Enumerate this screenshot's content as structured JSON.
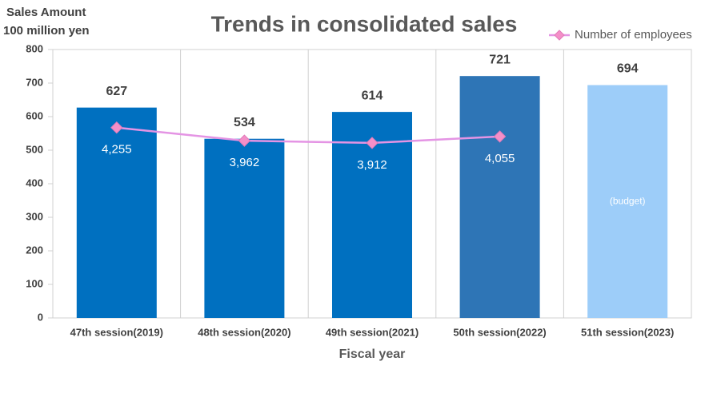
{
  "chart_data": {
    "type": "bar",
    "title": "Trends in consolidated sales",
    "ylabel": "Sales Amount",
    "ylabel_unit": "100 million yen",
    "xlabel": "Fiscal year",
    "categories": [
      "47th session(2019)",
      "48th session(2020)",
      "49th session(2021)",
      "50th session(2022)",
      "51th session(2023)"
    ],
    "series": [
      {
        "type": "bar",
        "colors": [
          "#0070c0",
          "#0070c0",
          "#0070c0",
          "#2e75b6",
          "#9dcdf9"
        ],
        "values": [
          627,
          534,
          614,
          721,
          694
        ],
        "bar_notes": [
          null,
          null,
          null,
          null,
          "(budget)"
        ]
      },
      {
        "type": "line",
        "name": "Number of employees",
        "color": "#f48fc8",
        "line_color": "#e494e4",
        "axis": "y2",
        "values": [
          4255,
          3962,
          3912,
          4055,
          null
        ],
        "value_labels": [
          "4,255",
          "3,962",
          "3,912",
          "4,055",
          null
        ]
      }
    ],
    "ylim": [
      0,
      800
    ],
    "yticks": [
      0,
      100,
      200,
      300,
      400,
      500,
      600,
      700,
      800
    ],
    "y2lim": [
      0,
      6000
    ],
    "vertical_grid": true,
    "legend": "top-right"
  }
}
